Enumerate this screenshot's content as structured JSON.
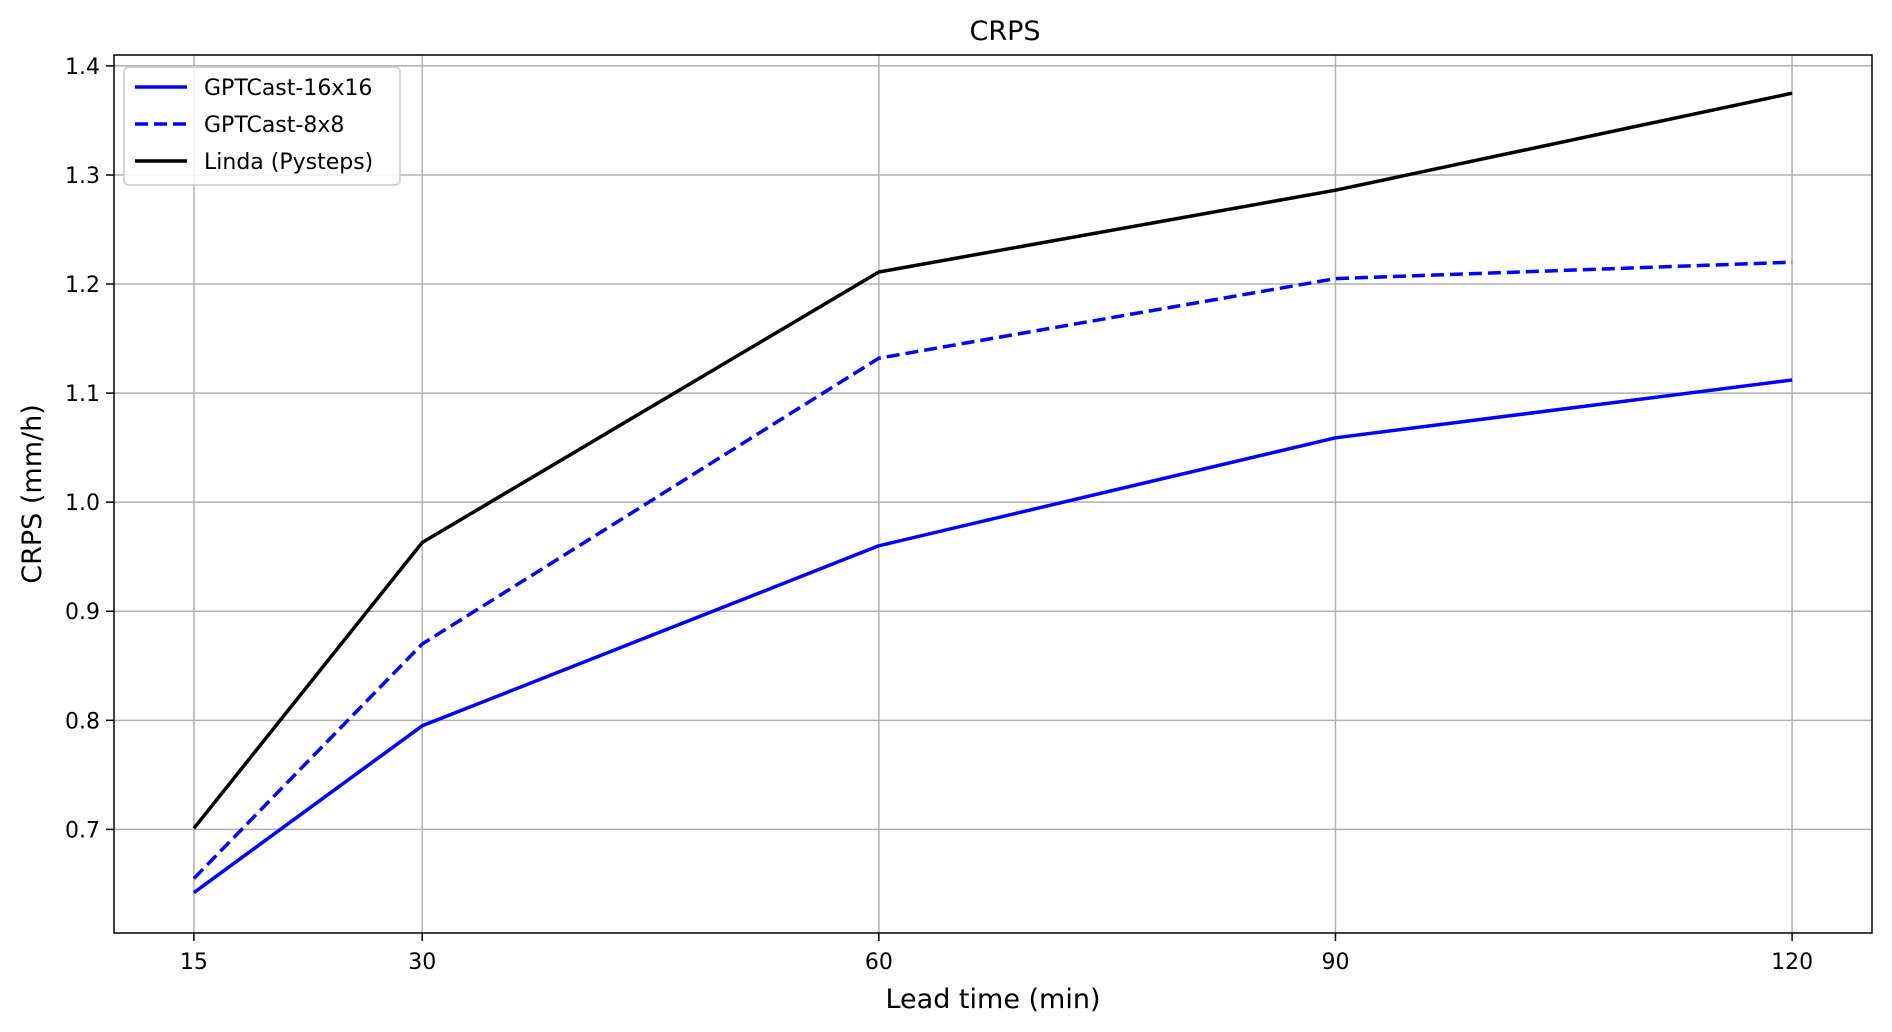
{
  "chart_data": {
    "type": "line",
    "title": "CRPS",
    "xlabel": "Lead time (min)",
    "ylabel": "CRPS (mm/h)",
    "x": [
      15,
      30,
      60,
      90,
      120
    ],
    "xticks": [
      "15",
      "30",
      "60",
      "90",
      "120"
    ],
    "yticks": [
      "0.7",
      "0.8",
      "0.9",
      "1.0",
      "1.1",
      "1.2",
      "1.3",
      "1.4"
    ],
    "xlim": [
      9.75,
      125.25
    ],
    "ylim": [
      0.605,
      1.41
    ],
    "grid": true,
    "legend_position": "top-left",
    "series": [
      {
        "name": "GPTCast-16x16",
        "values": [
          0.642,
          0.795,
          0.96,
          1.059,
          1.112
        ],
        "color": "#0000ff",
        "style": "solid"
      },
      {
        "name": "GPTCast-8x8",
        "values": [
          0.655,
          0.87,
          1.132,
          1.205,
          1.22
        ],
        "color": "#0000ff",
        "style": "dashed"
      },
      {
        "name": "Linda (Pysteps)",
        "values": [
          0.701,
          0.963,
          1.211,
          1.286,
          1.375
        ],
        "color": "#000000",
        "style": "solid"
      }
    ]
  }
}
